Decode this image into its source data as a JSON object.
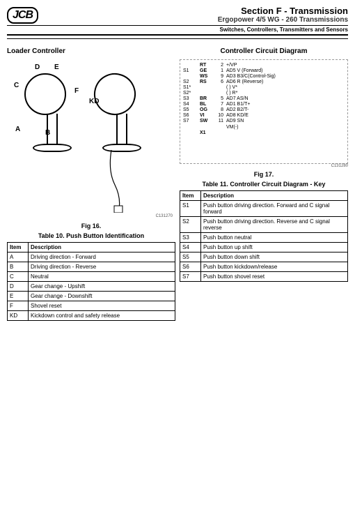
{
  "header": {
    "logo": "JCB",
    "section": "Section F - Transmission",
    "subtitle": "Ergopower 4/5 WG - 260 Transmissions",
    "subsub": "Switches, Controllers, Transmitters and Sensors"
  },
  "left": {
    "heading": "Loader Controller",
    "labels": {
      "A": "A",
      "B": "B",
      "C": "C",
      "D": "D",
      "E": "E",
      "F": "F",
      "KD": "KD"
    },
    "fig_caption": "Fig 16.",
    "fig_ref": "C131270",
    "table_caption": "Table 10. Push Button Identification",
    "table_cols": [
      "Item",
      "Description"
    ],
    "table_rows": [
      [
        "A",
        "Driving direction - Forward"
      ],
      [
        "B",
        "Driving direction - Reverse"
      ],
      [
        "C",
        "Neutral"
      ],
      [
        "D",
        "Gear change - Upshift"
      ],
      [
        "E",
        "Gear change - Downshift"
      ],
      [
        "F",
        "Shovel reset"
      ],
      [
        "KD",
        "Kickdown control and safety release"
      ]
    ]
  },
  "right": {
    "heading": "Controller Circuit Diagram",
    "fig_caption": "Fig 17.",
    "fig_ref": "C131280",
    "circuit_rows": [
      {
        "s": "",
        "pin": "RT",
        "n": "2",
        "sig": "+/VP"
      },
      {
        "s": "S1",
        "pin": "GE",
        "n": "1",
        "sig": "AD5 V  (Forward)"
      },
      {
        "s": "",
        "pin": "WS",
        "n": "9",
        "sig": "AD3 B3/C(Control-Sig)"
      },
      {
        "s": "S2",
        "pin": "RS",
        "n": "6",
        "sig": "AD6 R  (Reverse)"
      },
      {
        "s": "S1*",
        "pin": "",
        "n": "",
        "sig": "( ) V*"
      },
      {
        "s": "S2*",
        "pin": "",
        "n": "",
        "sig": "( ) R*"
      },
      {
        "s": "S3",
        "pin": "BR",
        "n": "5",
        "sig": "AD7 AS/N"
      },
      {
        "s": "S4",
        "pin": "BL",
        "n": "7",
        "sig": "AD1 B1/T+"
      },
      {
        "s": "S5",
        "pin": "OG",
        "n": "8",
        "sig": "AD2 B2/T-"
      },
      {
        "s": "S6",
        "pin": "VI",
        "n": "10",
        "sig": "AD8 KD/E"
      },
      {
        "s": "S7",
        "pin": "SW",
        "n": "11",
        "sig": "AD9 SN"
      },
      {
        "s": "",
        "pin": "",
        "n": "",
        "sig": "VM(-)"
      },
      {
        "s": "",
        "pin": "X1",
        "n": "",
        "sig": ""
      }
    ],
    "table_caption": "Table 11. Controller Circuit Diagram - Key",
    "table_cols": [
      "Item",
      "Description"
    ],
    "table_rows": [
      [
        "S1",
        "Push button driving direction. Forward and C signal forward"
      ],
      [
        "S2",
        "Push button driving direction. Reverse and C signal reverse"
      ],
      [
        "S3",
        "Push button neutral"
      ],
      [
        "S4",
        "Push button up shift"
      ],
      [
        "S5",
        "Push button down shift"
      ],
      [
        "S6",
        "Push button kickdown/release"
      ],
      [
        "S7",
        "Push button shovel reset"
      ]
    ]
  }
}
